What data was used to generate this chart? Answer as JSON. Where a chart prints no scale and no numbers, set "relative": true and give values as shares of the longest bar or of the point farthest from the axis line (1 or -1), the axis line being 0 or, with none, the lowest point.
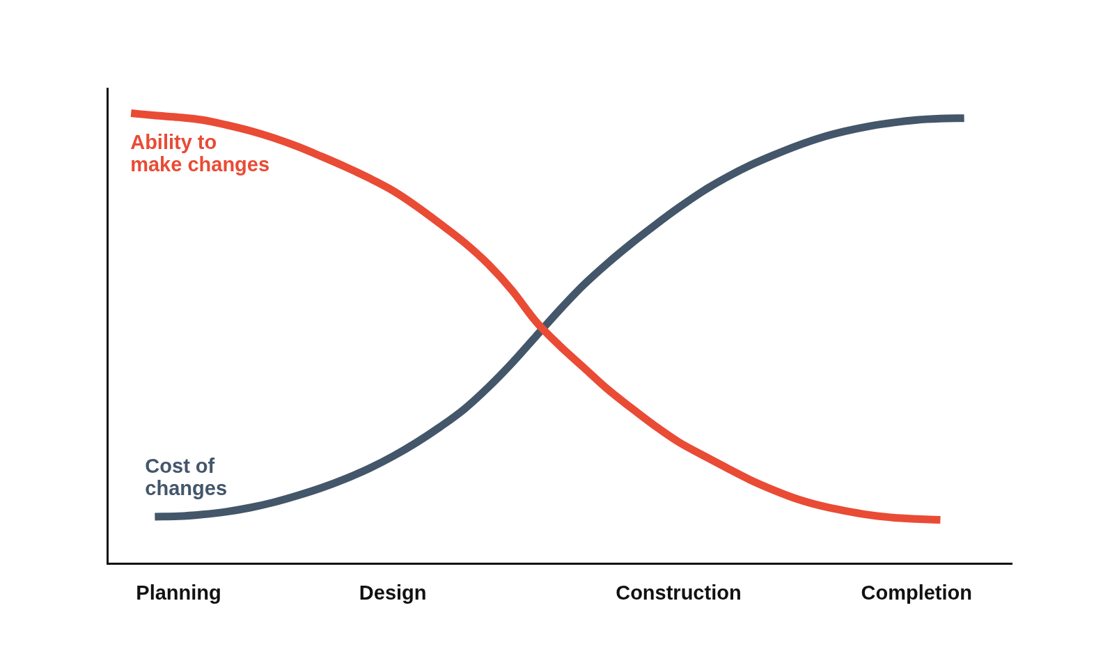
{
  "chart_data": {
    "type": "line",
    "relative": true,
    "marker": "none",
    "line_style": "solid",
    "categories": [
      null,
      null,
      null,
      "Planning",
      null,
      null,
      null,
      null,
      null,
      null,
      null,
      null,
      "Design",
      null,
      null,
      null,
      null,
      null,
      null,
      null,
      null,
      null,
      null,
      null,
      "Construction",
      null,
      null,
      null,
      null,
      null,
      null,
      null,
      null,
      null,
      "Completion",
      null,
      null,
      null,
      null
    ],
    "series": [
      {
        "name": "Ability to make changes",
        "color": "#e94b35",
        "values": [
          null,
          1.0,
          0.995,
          0.991,
          0.985,
          0.974,
          0.961,
          0.945,
          0.926,
          0.904,
          0.881,
          0.856,
          0.828,
          0.793,
          0.754,
          0.713,
          0.665,
          0.607,
          0.538,
          0.484,
          0.436,
          0.388,
          0.346,
          0.306,
          0.27,
          0.241,
          0.213,
          0.186,
          0.163,
          0.143,
          0.128,
          0.117,
          0.108,
          0.102,
          0.099,
          0.097,
          null,
          null,
          null
        ]
      },
      {
        "name": "Cost of changes",
        "color": "#43566a",
        "values": [
          null,
          null,
          0.104,
          0.105,
          0.109,
          0.115,
          0.124,
          0.136,
          0.151,
          0.168,
          0.188,
          0.211,
          0.238,
          0.269,
          0.304,
          0.343,
          0.391,
          0.445,
          0.504,
          0.563,
          0.618,
          0.666,
          0.71,
          0.751,
          0.79,
          0.826,
          0.857,
          0.884,
          0.907,
          0.928,
          0.946,
          0.96,
          0.971,
          0.979,
          0.985,
          0.988,
          0.989,
          null,
          null
        ]
      }
    ]
  }
}
